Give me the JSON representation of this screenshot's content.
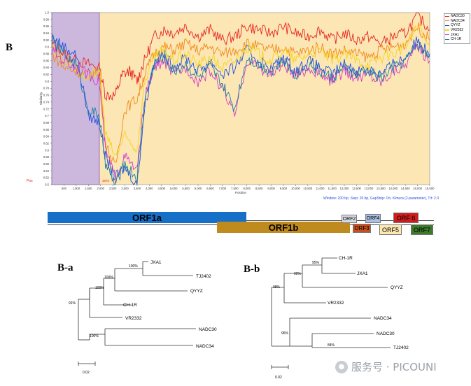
{
  "panel_labels": {
    "B": "B",
    "Ba": "B-a",
    "Bb": "B-b"
  },
  "chart_data": {
    "type": "line",
    "xlabel": "Position",
    "ylabel": "Similarity",
    "xlim": [
      0,
      15500
    ],
    "ylim": [
      0.5,
      1.0
    ],
    "x_ticks": [
      500,
      1000,
      1500,
      2000,
      2500,
      3000,
      3500,
      4000,
      4500,
      5000,
      5500,
      6000,
      6500,
      7000,
      7500,
      8000,
      8500,
      9000,
      9500,
      10000,
      10500,
      11000,
      11500,
      12000,
      12500,
      13000,
      13500,
      14000,
      14500,
      15000,
      15500
    ],
    "x_tick_labels": [
      "500",
      "1,000",
      "1,500",
      "2,000",
      "2,500",
      "3,000",
      "3,500",
      "4,000",
      "4,500",
      "5,000",
      "5,500",
      "6,000",
      "6,500",
      "7,000",
      "7,500",
      "8,000",
      "8,500",
      "9,000",
      "9,500",
      "10,000",
      "10,500",
      "11,000",
      "11,500",
      "12,000",
      "12,500",
      "13,000",
      "13,500",
      "14,000",
      "14,500",
      "15,000",
      "15,500"
    ],
    "y_ticks": [
      0.5,
      0.52,
      0.54,
      0.56,
      0.58,
      0.6,
      0.62,
      0.64,
      0.66,
      0.68,
      0.7,
      0.72,
      0.74,
      0.76,
      0.78,
      0.8,
      0.82,
      0.84,
      0.86,
      0.88,
      0.9,
      0.92,
      0.94,
      0.96,
      0.98,
      1.0
    ],
    "y_tick_labels": [
      "0.5",
      "0.52",
      "0.54",
      "0.56",
      "0.58",
      "0.6",
      "0.62",
      "0.64",
      "0.66",
      "0.68",
      "0.7",
      "0.72",
      "0.74",
      "0.76",
      "0.78",
      "0.8",
      "0.82",
      "0.84",
      "0.86",
      "0.88",
      "0.9",
      "0.92",
      "0.94",
      "0.96",
      "0.98",
      "1.0"
    ],
    "highlight_region": {
      "x_start": 0,
      "x_end": 1950,
      "color": "#cdb8dd"
    },
    "background_color": "#fbe6b4",
    "pos_label": "Pos",
    "breakpoint_label": "1978",
    "window_note": "Window: 200 bp, Step: 20 bp, GapStrip: On, Kimura (2-parameter), T/t: 2.0",
    "series": [
      {
        "name": "NADC30",
        "color": "#e8261f",
        "values": [
          [
            0,
            0.91
          ],
          [
            500,
            0.88
          ],
          [
            1000,
            0.86
          ],
          [
            1500,
            0.85
          ],
          [
            1950,
            0.84
          ],
          [
            2200,
            0.76
          ],
          [
            2600,
            0.76
          ],
          [
            2900,
            0.82
          ],
          [
            3200,
            0.83
          ],
          [
            3500,
            0.8
          ],
          [
            3800,
            0.86
          ],
          [
            4200,
            0.93
          ],
          [
            4600,
            0.95
          ],
          [
            5000,
            0.94
          ],
          [
            5500,
            0.96
          ],
          [
            6000,
            0.93
          ],
          [
            6500,
            0.95
          ],
          [
            7000,
            0.92
          ],
          [
            7500,
            0.93
          ],
          [
            8000,
            0.96
          ],
          [
            8500,
            0.95
          ],
          [
            9000,
            0.94
          ],
          [
            9500,
            0.96
          ],
          [
            10000,
            0.94
          ],
          [
            10500,
            0.93
          ],
          [
            11000,
            0.95
          ],
          [
            11500,
            0.92
          ],
          [
            12000,
            0.94
          ],
          [
            12500,
            0.92
          ],
          [
            13000,
            0.93
          ],
          [
            13500,
            0.91
          ],
          [
            14000,
            0.93
          ],
          [
            14500,
            0.94
          ],
          [
            15000,
            0.99
          ],
          [
            15500,
            0.95
          ]
        ]
      },
      {
        "name": "NADC34",
        "color": "#f28a1a",
        "values": [
          [
            0,
            0.88
          ],
          [
            500,
            0.84
          ],
          [
            1000,
            0.83
          ],
          [
            1500,
            0.82
          ],
          [
            1950,
            0.83
          ],
          [
            2200,
            0.62
          ],
          [
            2600,
            0.55
          ],
          [
            3000,
            0.72
          ],
          [
            3500,
            0.75
          ],
          [
            3800,
            0.82
          ],
          [
            4200,
            0.88
          ],
          [
            4600,
            0.9
          ],
          [
            5000,
            0.89
          ],
          [
            5500,
            0.91
          ],
          [
            6000,
            0.89
          ],
          [
            6500,
            0.9
          ],
          [
            7000,
            0.88
          ],
          [
            7500,
            0.89
          ],
          [
            8000,
            0.91
          ],
          [
            8500,
            0.9
          ],
          [
            9000,
            0.89
          ],
          [
            9500,
            0.9
          ],
          [
            10000,
            0.88
          ],
          [
            10500,
            0.89
          ],
          [
            11000,
            0.9
          ],
          [
            11500,
            0.88
          ],
          [
            12000,
            0.89
          ],
          [
            12500,
            0.88
          ],
          [
            13000,
            0.87
          ],
          [
            13500,
            0.89
          ],
          [
            14000,
            0.9
          ],
          [
            14500,
            0.91
          ],
          [
            15000,
            0.96
          ],
          [
            15500,
            0.92
          ]
        ]
      },
      {
        "name": "QYYZ",
        "color": "#2050e0",
        "values": [
          [
            0,
            0.93
          ],
          [
            500,
            0.9
          ],
          [
            1000,
            0.88
          ],
          [
            1500,
            0.7
          ],
          [
            1950,
            0.68
          ],
          [
            2200,
            0.58
          ],
          [
            2600,
            0.52
          ],
          [
            3000,
            0.55
          ],
          [
            3500,
            0.5
          ],
          [
            3800,
            0.72
          ],
          [
            4200,
            0.86
          ],
          [
            4600,
            0.88
          ],
          [
            5000,
            0.84
          ],
          [
            5500,
            0.87
          ],
          [
            6000,
            0.83
          ],
          [
            6500,
            0.86
          ],
          [
            7000,
            0.82
          ],
          [
            7500,
            0.84
          ],
          [
            8000,
            0.89
          ],
          [
            8500,
            0.86
          ],
          [
            9000,
            0.84
          ],
          [
            9500,
            0.87
          ],
          [
            10000,
            0.83
          ],
          [
            10500,
            0.86
          ],
          [
            11000,
            0.84
          ],
          [
            11500,
            0.82
          ],
          [
            12000,
            0.85
          ],
          [
            12500,
            0.83
          ],
          [
            13000,
            0.84
          ],
          [
            13500,
            0.82
          ],
          [
            14000,
            0.85
          ],
          [
            14500,
            0.87
          ],
          [
            15000,
            0.92
          ],
          [
            15500,
            0.88
          ]
        ]
      },
      {
        "name": "VR2332",
        "color": "#f5d61a",
        "values": [
          [
            0,
            0.9
          ],
          [
            500,
            0.86
          ],
          [
            1000,
            0.84
          ],
          [
            1500,
            0.8
          ],
          [
            1950,
            0.84
          ],
          [
            2200,
            0.65
          ],
          [
            2600,
            0.58
          ],
          [
            3000,
            0.64
          ],
          [
            3500,
            0.6
          ],
          [
            3800,
            0.8
          ],
          [
            4200,
            0.87
          ],
          [
            4600,
            0.89
          ],
          [
            5000,
            0.86
          ],
          [
            5500,
            0.88
          ],
          [
            6000,
            0.85
          ],
          [
            6500,
            0.87
          ],
          [
            7000,
            0.84
          ],
          [
            7500,
            0.86
          ],
          [
            8000,
            0.9
          ],
          [
            8500,
            0.88
          ],
          [
            9000,
            0.86
          ],
          [
            9500,
            0.89
          ],
          [
            10000,
            0.86
          ],
          [
            10500,
            0.88
          ],
          [
            11000,
            0.89
          ],
          [
            11500,
            0.86
          ],
          [
            12000,
            0.88
          ],
          [
            12500,
            0.86
          ],
          [
            13000,
            0.85
          ],
          [
            13500,
            0.87
          ],
          [
            14000,
            0.88
          ],
          [
            14500,
            0.9
          ],
          [
            15000,
            0.96
          ],
          [
            15500,
            0.9
          ]
        ]
      },
      {
        "name": "JXA1",
        "color": "#d23dc9",
        "values": [
          [
            0,
            0.89
          ],
          [
            500,
            0.86
          ],
          [
            1000,
            0.84
          ],
          [
            1500,
            0.82
          ],
          [
            1950,
            0.8
          ],
          [
            2200,
            0.6
          ],
          [
            2600,
            0.52
          ],
          [
            3000,
            0.58
          ],
          [
            3500,
            0.54
          ],
          [
            3800,
            0.75
          ],
          [
            4200,
            0.84
          ],
          [
            4600,
            0.86
          ],
          [
            5000,
            0.82
          ],
          [
            5500,
            0.84
          ],
          [
            6000,
            0.8
          ],
          [
            6500,
            0.83
          ],
          [
            7000,
            0.78
          ],
          [
            7500,
            0.7
          ],
          [
            8000,
            0.86
          ],
          [
            8500,
            0.84
          ],
          [
            9000,
            0.82
          ],
          [
            9500,
            0.85
          ],
          [
            10000,
            0.81
          ],
          [
            10500,
            0.84
          ],
          [
            11000,
            0.82
          ],
          [
            11500,
            0.8
          ],
          [
            12000,
            0.83
          ],
          [
            12500,
            0.81
          ],
          [
            13000,
            0.82
          ],
          [
            13500,
            0.8
          ],
          [
            14000,
            0.83
          ],
          [
            14500,
            0.85
          ],
          [
            15000,
            0.9
          ],
          [
            15500,
            0.86
          ]
        ]
      },
      {
        "name": "CH-1R",
        "color": "#1e7fa0",
        "values": [
          [
            0,
            0.92
          ],
          [
            500,
            0.88
          ],
          [
            1000,
            0.85
          ],
          [
            1500,
            0.72
          ],
          [
            1950,
            0.7
          ],
          [
            2200,
            0.56
          ],
          [
            2600,
            0.5
          ],
          [
            3000,
            0.56
          ],
          [
            3500,
            0.52
          ],
          [
            3800,
            0.74
          ],
          [
            4200,
            0.85
          ],
          [
            4600,
            0.87
          ],
          [
            5000,
            0.83
          ],
          [
            5500,
            0.85
          ],
          [
            6000,
            0.81
          ],
          [
            6500,
            0.84
          ],
          [
            7000,
            0.79
          ],
          [
            7500,
            0.72
          ],
          [
            8000,
            0.87
          ],
          [
            8500,
            0.85
          ],
          [
            9000,
            0.83
          ],
          [
            9500,
            0.86
          ],
          [
            10000,
            0.82
          ],
          [
            10500,
            0.85
          ],
          [
            11000,
            0.83
          ],
          [
            11500,
            0.81
          ],
          [
            12000,
            0.84
          ],
          [
            12500,
            0.82
          ],
          [
            13000,
            0.83
          ],
          [
            13500,
            0.81
          ],
          [
            14000,
            0.84
          ],
          [
            14500,
            0.86
          ],
          [
            15000,
            0.91
          ],
          [
            15500,
            0.87
          ]
        ]
      }
    ]
  },
  "genome_map": [
    {
      "label": "ORF1a",
      "color": "#1670c8",
      "text_color": "#000000"
    },
    {
      "label": "ORF1b",
      "color": "#bf8a1e",
      "text_color": "#000000"
    },
    {
      "label": "ORF2",
      "color": "#d8dce6",
      "text_color": "#000000"
    },
    {
      "label": "ORF3",
      "color": "#c8501c",
      "text_color": "#000000"
    },
    {
      "label": "ORF4",
      "color": "#a9c0e4",
      "text_color": "#000000"
    },
    {
      "label": "ORF5",
      "color": "#fde8b2",
      "text_color": "#000000"
    },
    {
      "label": "ORF 6",
      "color": "#cf1d1d",
      "text_color": "#000000"
    },
    {
      "label": "ORF7",
      "color": "#3c7a2c",
      "text_color": "#000000"
    }
  ],
  "tree_a": {
    "taxa": [
      "JXA1",
      "TJ2402",
      "QYYZ",
      "CH-1R",
      "VR2332",
      "NADC30",
      "NADC34"
    ],
    "bootstraps": [
      "100%",
      "100%",
      "100%",
      "91%",
      "100%"
    ],
    "scale": "0.02"
  },
  "tree_b": {
    "taxa": [
      "CH-1R",
      "JXA1",
      "QYYZ",
      "VR2332",
      "NADC34",
      "NADC30",
      "TJ2402"
    ],
    "bootstraps": [
      "95%",
      "99%",
      "98%",
      "96%",
      "84%"
    ],
    "scale": "0.02"
  },
  "watermark": {
    "icon": "wechat-icon",
    "text": "服务号 · PICOUNI"
  }
}
